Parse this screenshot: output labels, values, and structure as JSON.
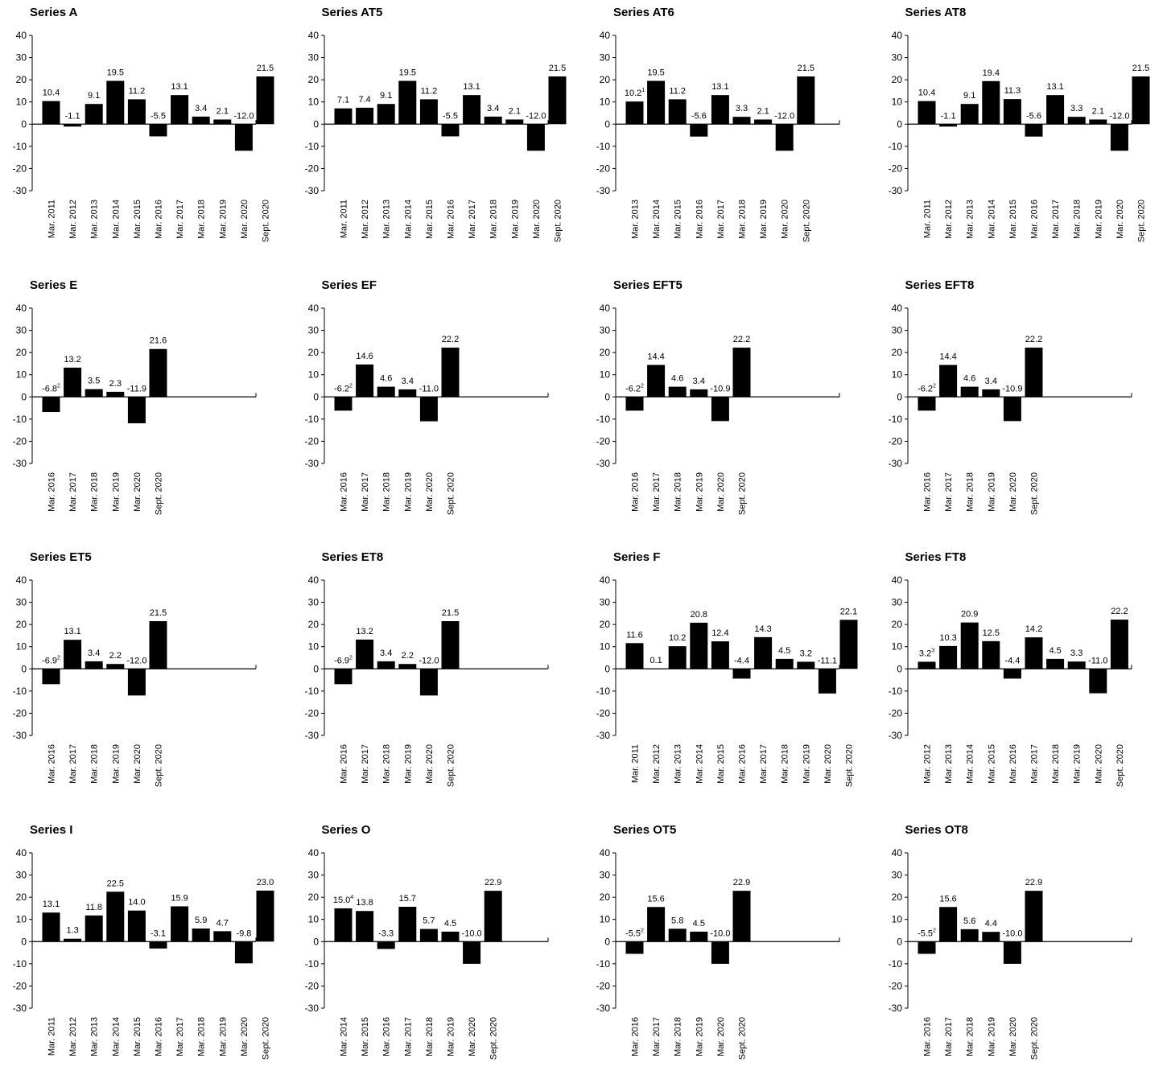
{
  "chart_data": [
    {
      "type": "bar",
      "title": "Series A",
      "ylim": [
        -30,
        40
      ],
      "yticks": [
        "40",
        "30",
        "20",
        "10",
        "0",
        "-10",
        "-20",
        "-30"
      ],
      "categories": [
        "Mar. 2011",
        "Mar. 2012",
        "Mar. 2013",
        "Mar. 2014",
        "Mar. 2015",
        "Mar. 2016",
        "Mar. 2017",
        "Mar. 2018",
        "Mar. 2019",
        "Mar. 2020",
        "Sept. 2020"
      ],
      "values": [
        10.4,
        -1.1,
        9.1,
        19.5,
        11.2,
        -5.5,
        13.1,
        3.4,
        2.1,
        -12.0,
        21.5
      ],
      "labels": [
        "10.4",
        "-1.1",
        "9.1",
        "19.5",
        "11.2",
        "-5.5",
        "13.1",
        "3.4",
        "2.1",
        "-12.0",
        "21.5"
      ],
      "notes": [
        "",
        "",
        "",
        "",
        "",
        "",
        "",
        "",
        "",
        "",
        ""
      ]
    },
    {
      "type": "bar",
      "title": "Series AT5",
      "ylim": [
        -30,
        40
      ],
      "yticks": [
        "40",
        "30",
        "20",
        "10",
        "0",
        "-10",
        "-20",
        "-30"
      ],
      "categories": [
        "Mar. 2011",
        "Mar. 2012",
        "Mar. 2013",
        "Mar. 2014",
        "Mar. 2015",
        "Mar. 2016",
        "Mar. 2017",
        "Mar. 2018",
        "Mar. 2019",
        "Mar. 2020",
        "Sept. 2020"
      ],
      "values": [
        7.1,
        7.4,
        9.1,
        19.5,
        11.2,
        -5.5,
        13.1,
        3.4,
        2.1,
        -12.0,
        21.5
      ],
      "labels": [
        "7.1",
        "7.4",
        "9.1",
        "19.5",
        "11.2",
        "-5.5",
        "13.1",
        "3.4",
        "2.1",
        "-12.0",
        "21.5"
      ],
      "notes": [
        "",
        "",
        "",
        "",
        "",
        "",
        "",
        "",
        "",
        "",
        ""
      ]
    },
    {
      "type": "bar",
      "title": "Series AT6",
      "ylim": [
        -30,
        40
      ],
      "yticks": [
        "40",
        "30",
        "20",
        "10",
        "0",
        "-10",
        "-20",
        "-30"
      ],
      "categories": [
        "Mar. 2013",
        "Mar. 2014",
        "Mar. 2015",
        "Mar. 2016",
        "Mar. 2017",
        "Mar. 2018",
        "Mar. 2019",
        "Mar. 2020",
        "Sept. 2020"
      ],
      "values": [
        10.2,
        19.5,
        11.2,
        -5.6,
        13.1,
        3.3,
        2.1,
        -12.0,
        21.5
      ],
      "labels": [
        "10.2",
        "19.5",
        "11.2",
        "-5.6",
        "13.1",
        "3.3",
        "2.1",
        "-12.0",
        "21.5"
      ],
      "notes": [
        "1",
        "",
        "",
        "",
        "",
        "",
        "",
        "",
        ""
      ]
    },
    {
      "type": "bar",
      "title": "Series AT8",
      "ylim": [
        -30,
        40
      ],
      "yticks": [
        "40",
        "30",
        "20",
        "10",
        "0",
        "-10",
        "-20",
        "-30"
      ],
      "categories": [
        "Mar. 2011",
        "Mar. 2012",
        "Mar. 2013",
        "Mar. 2014",
        "Mar. 2015",
        "Mar. 2016",
        "Mar. 2017",
        "Mar. 2018",
        "Mar. 2019",
        "Mar. 2020",
        "Sept. 2020"
      ],
      "values": [
        10.4,
        -1.1,
        9.1,
        19.4,
        11.3,
        -5.6,
        13.1,
        3.3,
        2.1,
        -12.0,
        21.5
      ],
      "labels": [
        "10.4",
        "-1.1",
        "9.1",
        "19.4",
        "11.3",
        "-5.6",
        "13.1",
        "3.3",
        "2.1",
        "-12.0",
        "21.5"
      ],
      "notes": [
        "",
        "",
        "",
        "",
        "",
        "",
        "",
        "",
        "",
        "",
        ""
      ]
    },
    {
      "type": "bar",
      "title": "Series E",
      "ylim": [
        -30,
        40
      ],
      "yticks": [
        "40",
        "30",
        "20",
        "10",
        "0",
        "-10",
        "-20",
        "-30"
      ],
      "categories": [
        "Mar. 2016",
        "Mar. 2017",
        "Mar. 2018",
        "Mar. 2019",
        "Mar. 2020",
        "Sept. 2020"
      ],
      "values": [
        -6.8,
        13.2,
        3.5,
        2.3,
        -11.9,
        21.6
      ],
      "labels": [
        "-6.8",
        "13.2",
        "3.5",
        "2.3",
        "-11.9",
        "21.6"
      ],
      "notes": [
        "2",
        "",
        "",
        "",
        "",
        ""
      ]
    },
    {
      "type": "bar",
      "title": "Series EF",
      "ylim": [
        -30,
        40
      ],
      "yticks": [
        "40",
        "30",
        "20",
        "10",
        "0",
        "-10",
        "-20",
        "-30"
      ],
      "categories": [
        "Mar. 2016",
        "Mar. 2017",
        "Mar. 2018",
        "Mar. 2019",
        "Mar. 2020",
        "Sept. 2020"
      ],
      "values": [
        -6.2,
        14.6,
        4.6,
        3.4,
        -11.0,
        22.2
      ],
      "labels": [
        "-6.2",
        "14.6",
        "4.6",
        "3.4",
        "-11.0",
        "22.2"
      ],
      "notes": [
        "2",
        "",
        "",
        "",
        "",
        ""
      ]
    },
    {
      "type": "bar",
      "title": "Series EFT5",
      "ylim": [
        -30,
        40
      ],
      "yticks": [
        "40",
        "30",
        "20",
        "10",
        "0",
        "-10",
        "-20",
        "-30"
      ],
      "categories": [
        "Mar. 2016",
        "Mar. 2017",
        "Mar. 2018",
        "Mar. 2019",
        "Mar. 2020",
        "Sept. 2020"
      ],
      "values": [
        -6.2,
        14.4,
        4.6,
        3.4,
        -10.9,
        22.2
      ],
      "labels": [
        "-6.2",
        "14.4",
        "4.6",
        "3.4",
        "-10.9",
        "22.2"
      ],
      "notes": [
        "2",
        "",
        "",
        "",
        "",
        ""
      ]
    },
    {
      "type": "bar",
      "title": "Series EFT8",
      "ylim": [
        -30,
        40
      ],
      "yticks": [
        "40",
        "30",
        "20",
        "10",
        "0",
        "-10",
        "-20",
        "-30"
      ],
      "categories": [
        "Mar. 2016",
        "Mar. 2017",
        "Mar. 2018",
        "Mar. 2019",
        "Mar. 2020",
        "Sept. 2020"
      ],
      "values": [
        -6.2,
        14.4,
        4.6,
        3.4,
        -10.9,
        22.2
      ],
      "labels": [
        "-6.2",
        "14.4",
        "4.6",
        "3.4",
        "-10.9",
        "22.2"
      ],
      "notes": [
        "2",
        "",
        "",
        "",
        "",
        ""
      ]
    },
    {
      "type": "bar",
      "title": "Series ET5",
      "ylim": [
        -30,
        40
      ],
      "yticks": [
        "40",
        "30",
        "20",
        "10",
        "0",
        "-10",
        "-20",
        "-30"
      ],
      "categories": [
        "Mar. 2016",
        "Mar. 2017",
        "Mar. 2018",
        "Mar. 2019",
        "Mar. 2020",
        "Sept. 2020"
      ],
      "values": [
        -6.9,
        13.1,
        3.4,
        2.2,
        -12.0,
        21.5
      ],
      "labels": [
        "-6.9",
        "13.1",
        "3.4",
        "2.2",
        "-12.0",
        "21.5"
      ],
      "notes": [
        "2",
        "",
        "",
        "",
        "",
        ""
      ]
    },
    {
      "type": "bar",
      "title": "Series ET8",
      "ylim": [
        -30,
        40
      ],
      "yticks": [
        "40",
        "30",
        "20",
        "10",
        "0",
        "-10",
        "-20",
        "-30"
      ],
      "categories": [
        "Mar. 2016",
        "Mar. 2017",
        "Mar. 2018",
        "Mar. 2019",
        "Mar. 2020",
        "Sept. 2020"
      ],
      "values": [
        -6.9,
        13.2,
        3.4,
        2.2,
        -12.0,
        21.5
      ],
      "labels": [
        "-6.9",
        "13.2",
        "3.4",
        "2.2",
        "-12.0",
        "21.5"
      ],
      "notes": [
        "2",
        "",
        "",
        "",
        "",
        ""
      ]
    },
    {
      "type": "bar",
      "title": "Series F",
      "ylim": [
        -30,
        40
      ],
      "yticks": [
        "40",
        "30",
        "20",
        "10",
        "0",
        "-10",
        "-20",
        "-30"
      ],
      "categories": [
        "Mar. 2011",
        "Mar. 2012",
        "Mar. 2013",
        "Mar. 2014",
        "Mar. 2015",
        "Mar. 2016",
        "Mar. 2017",
        "Mar. 2018",
        "Mar. 2019",
        "Mar. 2020",
        "Sept. 2020"
      ],
      "values": [
        11.6,
        0.1,
        10.2,
        20.8,
        12.4,
        -4.4,
        14.3,
        4.5,
        3.2,
        -11.1,
        22.1
      ],
      "labels": [
        "11.6",
        "0.1",
        "10.2",
        "20.8",
        "12.4",
        "-4.4",
        "14.3",
        "4.5",
        "3.2",
        "-11.1",
        "22.1"
      ],
      "notes": [
        "",
        "",
        "",
        "",
        "",
        "",
        "",
        "",
        "",
        "",
        ""
      ]
    },
    {
      "type": "bar",
      "title": "Series FT8",
      "ylim": [
        -30,
        40
      ],
      "yticks": [
        "40",
        "30",
        "20",
        "10",
        "0",
        "-10",
        "-20",
        "-30"
      ],
      "categories": [
        "Mar. 2012",
        "Mar. 2013",
        "Mar. 2014",
        "Mar. 2015",
        "Mar. 2016",
        "Mar. 2017",
        "Mar. 2018",
        "Mar. 2019",
        "Mar. 2020",
        "Sept. 2020"
      ],
      "values": [
        3.2,
        10.3,
        20.9,
        12.5,
        -4.4,
        14.2,
        4.5,
        3.3,
        -11.0,
        22.2
      ],
      "labels": [
        "3.2",
        "10.3",
        "20.9",
        "12.5",
        "-4.4",
        "14.2",
        "4.5",
        "3.3",
        "-11.0",
        "22.2"
      ],
      "notes": [
        "3",
        "",
        "",
        "",
        "",
        "",
        "",
        "",
        "",
        ""
      ]
    },
    {
      "type": "bar",
      "title": "Series I",
      "ylim": [
        -30,
        40
      ],
      "yticks": [
        "40",
        "30",
        "20",
        "10",
        "0",
        "-10",
        "-20",
        "-30"
      ],
      "categories": [
        "Mar. 2011",
        "Mar. 2012",
        "Mar. 2013",
        "Mar. 2014",
        "Mar. 2015",
        "Mar. 2016",
        "Mar. 2017",
        "Mar. 2018",
        "Mar. 2019",
        "Mar. 2020",
        "Sept. 2020"
      ],
      "values": [
        13.1,
        1.3,
        11.8,
        22.5,
        14.0,
        -3.1,
        15.9,
        5.9,
        4.7,
        -9.8,
        23.0
      ],
      "labels": [
        "13.1",
        "1.3",
        "11.8",
        "22.5",
        "14.0",
        "-3.1",
        "15.9",
        "5.9",
        "4.7",
        "-9.8",
        "23.0"
      ],
      "notes": [
        "",
        "",
        "",
        "",
        "",
        "",
        "",
        "",
        "",
        "",
        ""
      ]
    },
    {
      "type": "bar",
      "title": "Series O",
      "ylim": [
        -30,
        40
      ],
      "yticks": [
        "40",
        "30",
        "20",
        "10",
        "0",
        "-10",
        "-20",
        "-30"
      ],
      "categories": [
        "Mar. 2014",
        "Mar. 2015",
        "Mar. 2016",
        "Mar. 2017",
        "Mar. 2018",
        "Mar. 2019",
        "Mar. 2020",
        "Sept. 2020"
      ],
      "values": [
        15.0,
        13.8,
        -3.3,
        15.7,
        5.7,
        4.5,
        -10.0,
        22.9
      ],
      "labels": [
        "15.0",
        "13.8",
        "-3.3",
        "15.7",
        "5.7",
        "4.5",
        "-10.0",
        "22.9"
      ],
      "notes": [
        "4",
        "",
        "",
        "",
        "",
        "",
        "",
        ""
      ]
    },
    {
      "type": "bar",
      "title": "Series OT5",
      "ylim": [
        -30,
        40
      ],
      "yticks": [
        "40",
        "30",
        "20",
        "10",
        "0",
        "-10",
        "-20",
        "-30"
      ],
      "categories": [
        "Mar. 2016",
        "Mar. 2017",
        "Mar. 2018",
        "Mar. 2019",
        "Mar. 2020",
        "Sept. 2020"
      ],
      "values": [
        -5.5,
        15.6,
        5.8,
        4.5,
        -10.0,
        22.9
      ],
      "labels": [
        "-5.5",
        "15.6",
        "5.8",
        "4.5",
        "-10.0",
        "22.9"
      ],
      "notes": [
        "2",
        "",
        "",
        "",
        "",
        ""
      ]
    },
    {
      "type": "bar",
      "title": "Series OT8",
      "ylim": [
        -30,
        40
      ],
      "yticks": [
        "40",
        "30",
        "20",
        "10",
        "0",
        "-10",
        "-20",
        "-30"
      ],
      "categories": [
        "Mar. 2016",
        "Mar. 2017",
        "Mar. 2018",
        "Mar. 2019",
        "Mar. 2020",
        "Sept. 2020"
      ],
      "values": [
        -5.5,
        15.6,
        5.6,
        4.4,
        -10.0,
        22.9
      ],
      "labels": [
        "-5.5",
        "15.6",
        "5.6",
        "4.4",
        "-10.0",
        "22.9"
      ],
      "notes": [
        "2",
        "",
        "",
        "",
        "",
        ""
      ]
    }
  ],
  "colors": {
    "bar": "#000000",
    "axis": "#000000",
    "background": "#ffffff"
  }
}
